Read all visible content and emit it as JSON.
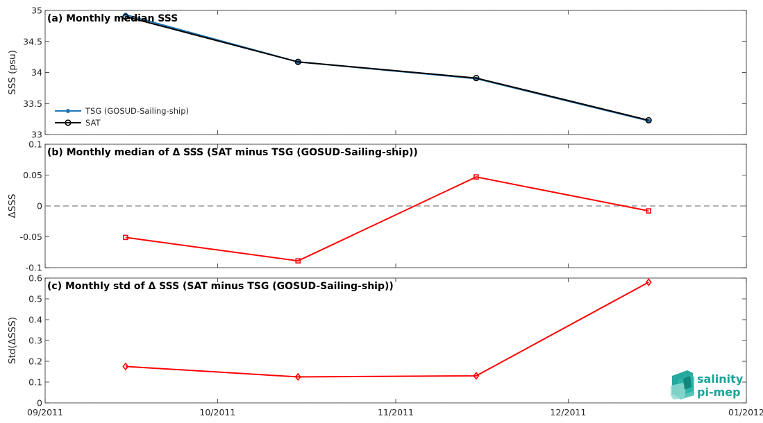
{
  "chart_data": [
    {
      "type": "line",
      "title": "(a) Monthly median SSS",
      "ylabel": "SSS (psu)",
      "x": [
        "2011-09-15",
        "2011-10-15",
        "2011-11-15",
        "2011-12-15"
      ],
      "ylim": [
        33,
        35
      ],
      "yticks": [
        33,
        33.5,
        34,
        34.5,
        35
      ],
      "series": [
        {
          "name": "TSG (GOSUD-Sailing-ship)",
          "values": [
            34.93,
            34.17,
            33.9,
            33.22
          ],
          "color": "#1f77b4",
          "marker": "dot"
        },
        {
          "name": "SAT",
          "values": [
            34.9,
            34.17,
            33.91,
            33.23
          ],
          "color": "#000000",
          "marker": "circle"
        }
      ],
      "legend": "lower-left",
      "grid": true
    },
    {
      "type": "line",
      "title": "(b) Monthly median of Δ SSS (SAT minus TSG (GOSUD-Sailing-ship))",
      "ylabel": "ΔSSS",
      "x": [
        "2011-09-15",
        "2011-10-15",
        "2011-11-15",
        "2011-12-15"
      ],
      "ylim": [
        -0.1,
        0.1
      ],
      "yticks": [
        -0.1,
        -0.05,
        0,
        0.05,
        0.1
      ],
      "series": [
        {
          "values": [
            -0.051,
            -0.089,
            0.047,
            -0.008
          ],
          "color": "#ff0000",
          "marker": "square"
        }
      ],
      "reference_line": 0,
      "grid": true
    },
    {
      "type": "line",
      "title": "(c) Monthly std of Δ SSS (SAT minus TSG (GOSUD-Sailing-ship))",
      "ylabel": "Std(ΔSSS)",
      "x": [
        "2011-09-15",
        "2011-10-15",
        "2011-11-15",
        "2011-12-15"
      ],
      "ylim": [
        0,
        0.6
      ],
      "yticks": [
        0,
        0.1,
        0.2,
        0.3,
        0.4,
        0.5,
        0.6
      ],
      "series": [
        {
          "values": [
            0.175,
            0.125,
            0.13,
            0.58
          ],
          "color": "#ff0000",
          "marker": "diamond"
        }
      ],
      "grid": true
    }
  ],
  "xaxis": {
    "range": [
      "2011-09-01",
      "2012-01-01"
    ],
    "ticks": [
      "2011-09-01",
      "2011-10-01",
      "2011-11-01",
      "2011-12-01",
      "2012-01-01"
    ],
    "tick_labels": [
      "09/2011",
      "10/2011",
      "11/2011",
      "12/2011",
      "01/2012"
    ]
  },
  "logo": {
    "line1": "salinity",
    "line2": "pi-mep"
  }
}
